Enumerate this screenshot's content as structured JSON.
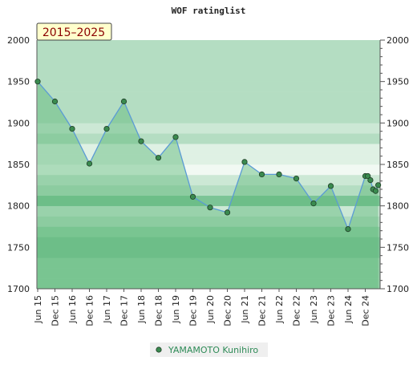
{
  "chart_data": {
    "type": "area",
    "title": "WOF ratinglist",
    "period_badge": "2015–2025",
    "ylim": [
      1700,
      2000
    ],
    "y_ticks": [
      1700,
      1750,
      1800,
      1850,
      1900,
      1950,
      2000
    ],
    "x_tick_labels": [
      "Jun 15",
      "Dec 15",
      "Jun 16",
      "Dec 16",
      "Jun 17",
      "Dec 17",
      "Jun 18",
      "Dec 18",
      "Jun 19",
      "Dec 19",
      "Jun 20",
      "Dec 20",
      "Jun 21",
      "Dec 21",
      "Jun 22",
      "Dec 22",
      "Jun 23",
      "Dec 23",
      "Jun 24",
      "Dec 24"
    ],
    "series": [
      {
        "name": "YAMAMOTO Kunihiro",
        "x": [
          0,
          1,
          2,
          3,
          4,
          5,
          6,
          7,
          8,
          9,
          10,
          11,
          12,
          13,
          14,
          15,
          16,
          17,
          18,
          19,
          19.15,
          19.3,
          19.45,
          19.6,
          19.75
        ],
        "values": [
          1950,
          1926,
          1893,
          1851,
          1893,
          1926,
          1878,
          1858,
          1883,
          1811,
          1798,
          1792,
          1853,
          1838,
          1838,
          1833,
          1803,
          1824,
          1772,
          1836,
          1836,
          1831,
          1820,
          1818,
          1825
        ]
      }
    ],
    "band_colors": {
      "strong": "#7cc496",
      "medium": "#93cfa7",
      "light": "#b4ddc2",
      "pale": "#cce8d5",
      "faint": "#dff1e4",
      "white": "#f1f9f3"
    },
    "line_color": "#5b9bd5",
    "marker_color": "#3a8a4f",
    "fill_color": "#5ab878",
    "grid": false,
    "legend_placement": "bottom-center"
  }
}
